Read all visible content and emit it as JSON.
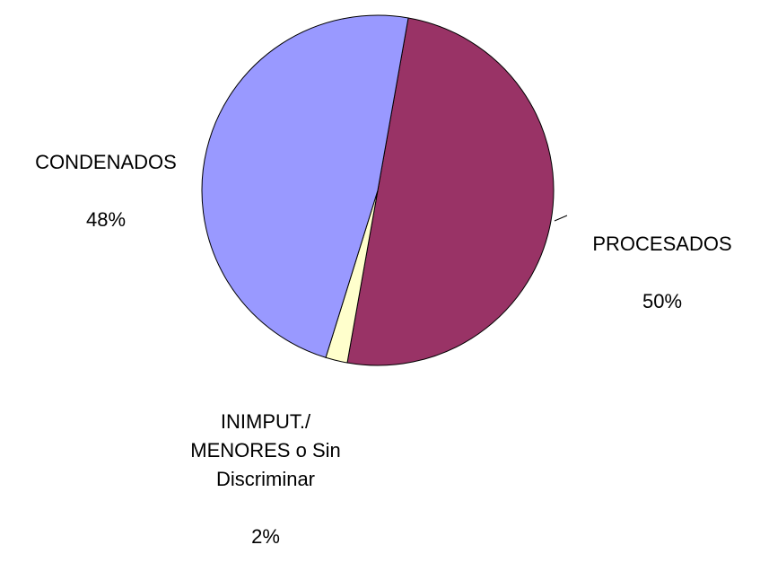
{
  "chart_data": {
    "type": "pie",
    "categories": [
      "PROCESADOS",
      "INIMPUT./\nMENORES o Sin\nDiscriminar",
      "CONDENADOS"
    ],
    "values": [
      50,
      2,
      48
    ],
    "value_labels": [
      "50%",
      "2%",
      "48%"
    ],
    "colors": [
      "#993366",
      "#FFFFCC",
      "#9999FF"
    ]
  }
}
